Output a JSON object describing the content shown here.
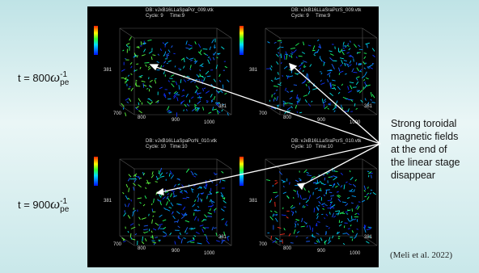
{
  "labels": [
    {
      "prefix": "t = 800",
      "symbol": "ω",
      "sup": "-1",
      "sub": "pe"
    },
    {
      "prefix": "t = 900",
      "symbol": "ω",
      "sup": "-1",
      "sub": "pe"
    }
  ],
  "note": {
    "lines": [
      "Strong toroidal",
      "magnetic fields",
      "at the end of",
      "the linear stage",
      "disappear"
    ]
  },
  "citation": "(Meli et al. 2022)",
  "panels": [
    {
      "db": "DB: vJxB16LLaSpaPcr_009.vtk",
      "cycle": "Cycle: 9",
      "time": "Time:9",
      "ticks": [
        "381",
        "700",
        "800",
        "900",
        "1000",
        "381"
      ]
    },
    {
      "db": "DB: vJxB16LLaSraPcrS_009.vtk",
      "cycle": "Cycle: 9",
      "time": "Time:9",
      "ticks": [
        "381",
        "700",
        "800",
        "900",
        "1000",
        "381"
      ]
    },
    {
      "db": "DB: vJxB16LLaSpaPcrN_010.vtk",
      "cycle": "Cycle: 10",
      "time": "Time:10",
      "ticks": [
        "381",
        "700",
        "800",
        "900",
        "1000",
        "381"
      ]
    },
    {
      "db": "DB: vJxB16LLaSraPcrS_010.vtk",
      "cycle": "Cycle: 10",
      "time": "Time:10",
      "ticks": [
        "381",
        "700",
        "800",
        "900",
        "1000",
        "381"
      ]
    }
  ]
}
